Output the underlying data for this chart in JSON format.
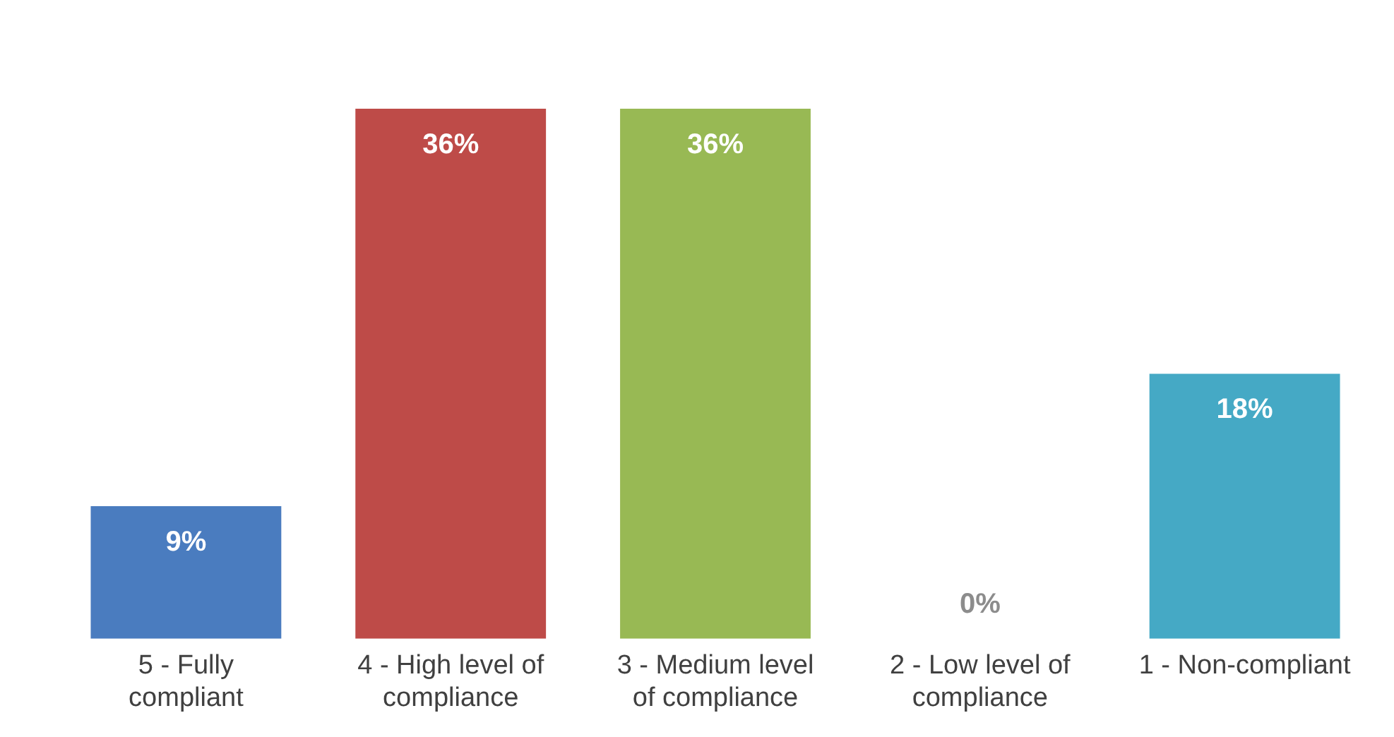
{
  "chart_data": {
    "type": "bar",
    "categories": [
      "5 - Fully compliant",
      "4 - High level of compliance",
      "3 - Medium level of compliance",
      "2 - Low level of compliance",
      "1 - Non-compliant"
    ],
    "values": [
      9,
      36,
      36,
      0,
      18
    ],
    "colors": [
      "#4a7cbf",
      "#be4b48",
      "#98b954",
      "#8064a2",
      "#45a9c5"
    ],
    "value_labels": [
      "9%",
      "36%",
      "36%",
      "0%",
      "18%"
    ],
    "legend": false,
    "grid": false
  }
}
